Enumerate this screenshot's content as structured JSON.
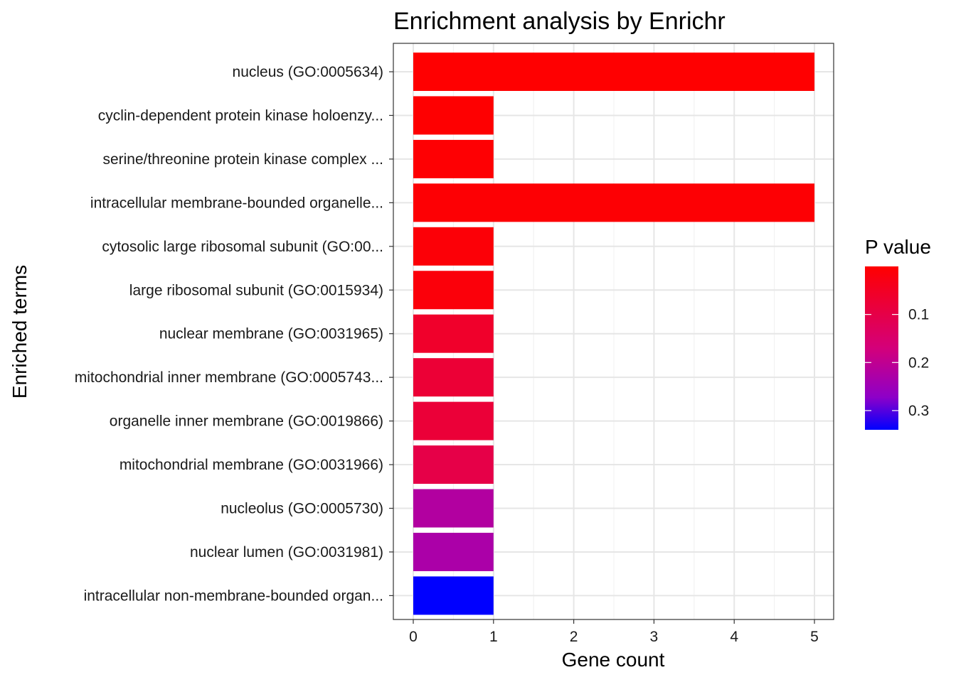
{
  "chart_data": {
    "type": "bar",
    "orientation": "horizontal",
    "title": "Enrichment analysis by Enrichr",
    "xlabel": "Gene count",
    "ylabel": "Enriched terms",
    "xlim": [
      0,
      5
    ],
    "x_ticks": [
      0,
      1,
      2,
      3,
      4,
      5
    ],
    "grid": true,
    "categories": [
      "nucleus (GO:0005634)",
      "cyclin-dependent protein kinase holoenzy...",
      "serine/threonine protein kinase complex ...",
      "intracellular membrane-bounded organelle...",
      "cytosolic large ribosomal subunit (GO:00...",
      "large ribosomal subunit (GO:0015934)",
      "nuclear membrane (GO:0031965)",
      "mitochondrial inner membrane (GO:0005743...",
      "organelle inner membrane (GO:0019866)",
      "mitochondrial membrane (GO:0031966)",
      "nucleolus (GO:0005730)",
      "nuclear lumen (GO:0031981)",
      "intracellular non-membrane-bounded organ..."
    ],
    "values": [
      5,
      1,
      1,
      5,
      1,
      1,
      1,
      1,
      1,
      1,
      1,
      1,
      1
    ],
    "p_values": [
      0.001,
      0.002,
      0.004,
      0.006,
      0.01,
      0.014,
      0.06,
      0.075,
      0.078,
      0.1,
      0.22,
      0.23,
      0.34
    ],
    "legend": {
      "title": "P value",
      "position": "right",
      "range": [
        0.0,
        0.34
      ],
      "ticks": [
        0.1,
        0.2,
        0.3
      ],
      "tick_labels": [
        "0.1",
        "0.2",
        "0.3"
      ],
      "color_low": "#FF0000",
      "color_high": "#0000FF"
    }
  }
}
